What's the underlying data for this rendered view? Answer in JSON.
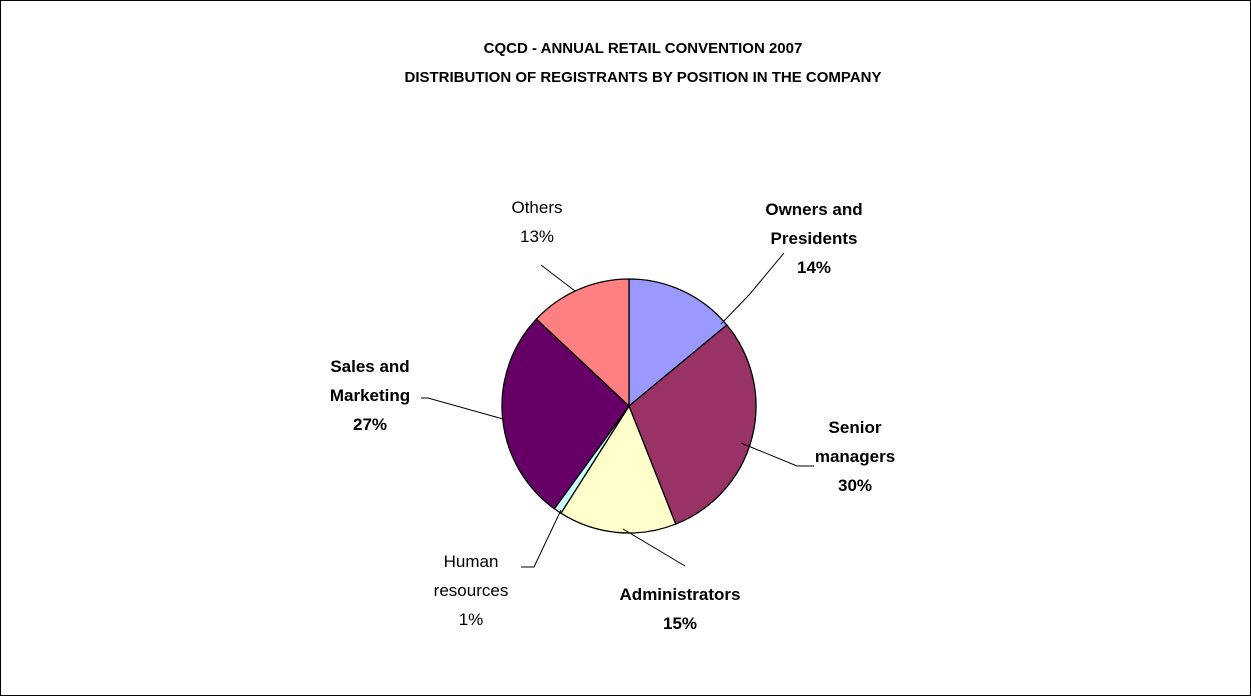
{
  "chart_data": {
    "type": "pie",
    "title": "CQCD - ANNUAL RETAIL CONVENTION 2007",
    "subtitle": "DISTRIBUTION OF REGISTRANTS BY POSITION IN THE COMPANY",
    "start_angle_deg": 0,
    "direction": "clockwise",
    "slices": [
      {
        "name": "Owners and Presidents",
        "label_lines": [
          "Owners and",
          "Presidents"
        ],
        "value": 14,
        "value_label": "14%",
        "color": "#9999FF",
        "bold": true
      },
      {
        "name": "Senior managers",
        "label_lines": [
          "Senior",
          "managers"
        ],
        "value": 30,
        "value_label": "30%",
        "color": "#993366",
        "bold": true
      },
      {
        "name": "Administrators",
        "label_lines": [
          "Administrators"
        ],
        "value": 15,
        "value_label": "15%",
        "color": "#FFFFCC",
        "bold": true
      },
      {
        "name": "Human resources",
        "label_lines": [
          "Human",
          "resources"
        ],
        "value": 1,
        "value_label": "1%",
        "color": "#CCFFFF",
        "bold": false
      },
      {
        "name": "Sales and Marketing",
        "label_lines": [
          "Sales and",
          "Marketing"
        ],
        "value": 27,
        "value_label": "27%",
        "color": "#660066",
        "bold": true
      },
      {
        "name": "Others",
        "label_lines": [
          "Others"
        ],
        "value": 13,
        "value_label": "13%",
        "color": "#FF8080",
        "bold": false
      }
    ]
  }
}
